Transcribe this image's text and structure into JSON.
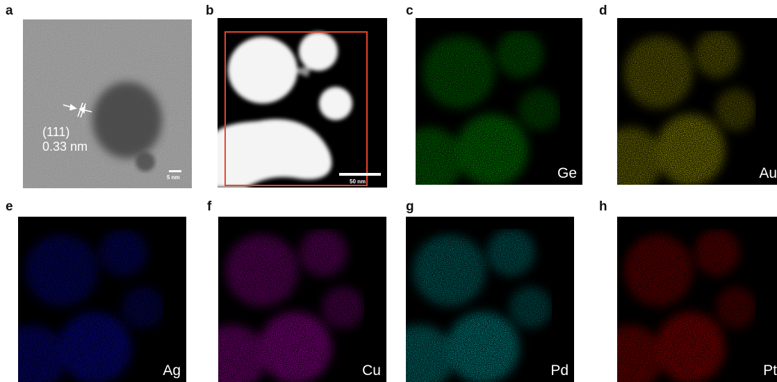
{
  "panels": {
    "a": {
      "letter": "a",
      "plane": "(111)",
      "spacing": "0.33 nm",
      "scale_bar": "5 nm"
    },
    "b": {
      "letter": "b",
      "scale_bar": "50 nm",
      "box_color": "#e8452c"
    },
    "c": {
      "letter": "c",
      "element": "Ge",
      "color": "#00e000"
    },
    "d": {
      "letter": "d",
      "element": "Au",
      "color": "#f5f000"
    },
    "e": {
      "letter": "e",
      "element": "Ag",
      "color": "#1010ff"
    },
    "f": {
      "letter": "f",
      "element": "Cu",
      "color": "#ff00ff"
    },
    "g": {
      "letter": "g",
      "element": "Pd",
      "color": "#00f0f0"
    },
    "h": {
      "letter": "h",
      "element": "Pt",
      "color": "#ff0000"
    }
  }
}
